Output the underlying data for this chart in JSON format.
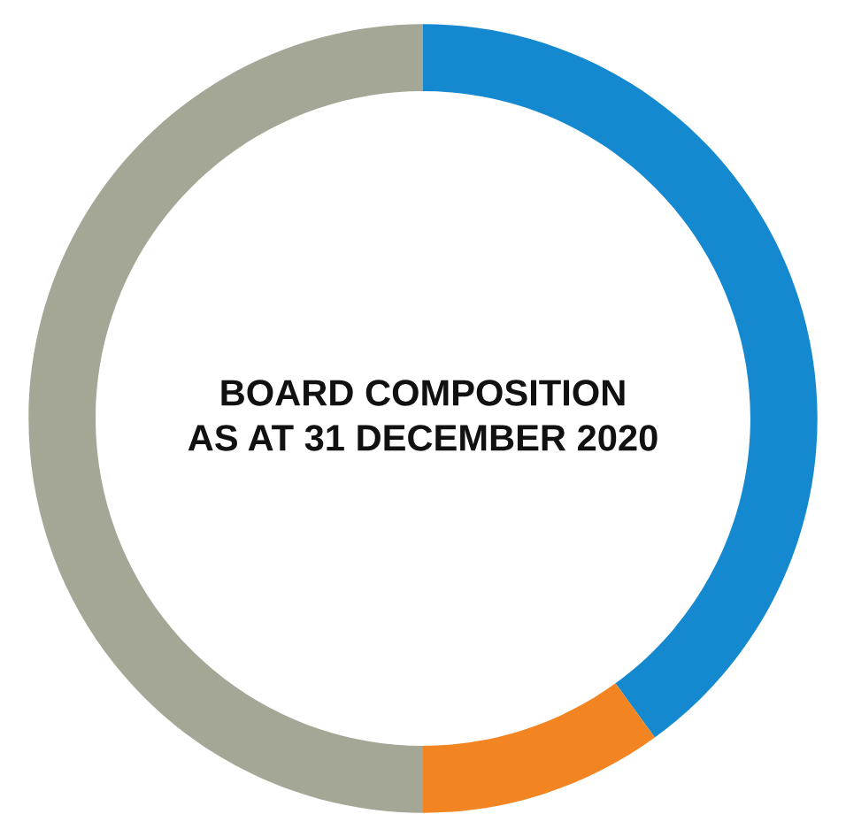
{
  "chart_data": {
    "type": "donut",
    "title": "BOARD COMPOSITION\nAS AT 31 DECEMBER 2020",
    "categories": [
      null,
      null,
      null
    ],
    "values": [
      40,
      10,
      50
    ],
    "colors": [
      "#1589d0",
      "#f28522",
      "#a5a796"
    ]
  }
}
